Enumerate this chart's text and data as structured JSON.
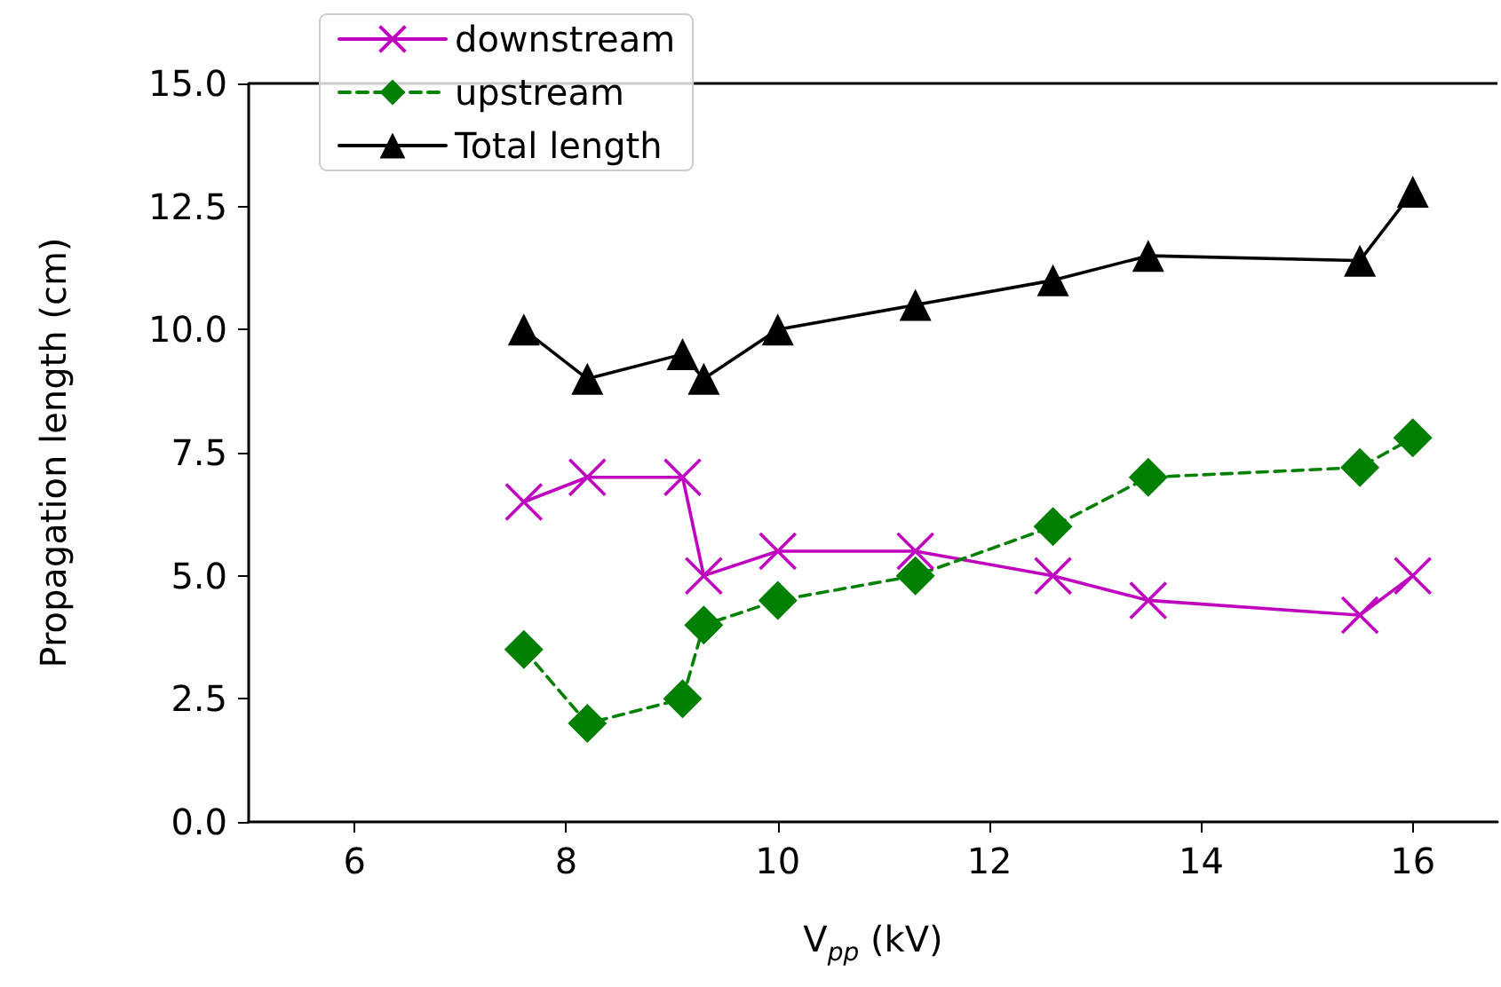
{
  "chart_data": {
    "type": "line",
    "xlabel": "V$_{pp}$ (kV)",
    "ylabel": "Propagation length (cm)",
    "x": [
      7.6,
      8.2,
      9.1,
      9.3,
      10,
      11.3,
      12.6,
      13.5,
      15.5,
      16
    ],
    "series": [
      {
        "name": "downstream",
        "color": "#bf00bf",
        "marker": "cross",
        "line_style": "solid",
        "values": [
          6.5,
          7,
          7,
          5,
          5.5,
          5.5,
          5,
          4.5,
          4.2,
          5
        ]
      },
      {
        "name": "upstream",
        "color": "#008000",
        "marker": "diamond",
        "line_style": "dashed",
        "values": [
          3.5,
          2,
          2.5,
          4,
          4.5,
          5,
          6,
          7,
          7.2,
          7.8
        ]
      },
      {
        "name": "Total length",
        "color": "#000000",
        "marker": "triangle",
        "line_style": "solid",
        "values": [
          10,
          9,
          9.5,
          9,
          10,
          10.5,
          11,
          11.5,
          11.4,
          12.8
        ]
      }
    ],
    "xlim": [
      5,
      16.8
    ],
    "xticks": [
      6,
      8,
      10,
      12,
      14,
      16
    ],
    "ylim": [
      0,
      15
    ],
    "yticks": [
      {
        "value": 0,
        "label": "0.0"
      },
      2.5,
      {
        "value": 5,
        "label": "5.0"
      },
      7.5,
      {
        "value": 10,
        "label": "10.0"
      },
      12.5,
      {
        "value": 15,
        "label": "15.0"
      }
    ],
    "grid": false,
    "legend": "top left"
  }
}
